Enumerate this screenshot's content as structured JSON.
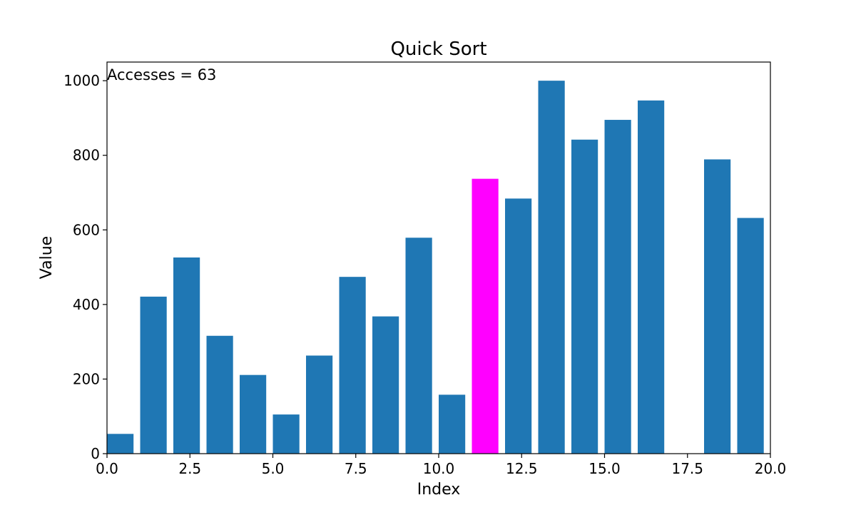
{
  "chart_data": {
    "type": "bar",
    "title": "Quick Sort",
    "xlabel": "Index",
    "ylabel": "Value",
    "annotation": "Accesses = 63",
    "xlim": [
      0,
      20
    ],
    "ylim": [
      0,
      1050
    ],
    "xticks": [
      0,
      2.5,
      5,
      7.5,
      10,
      12.5,
      15,
      17.5,
      20
    ],
    "xtick_labels": [
      "0.0",
      "2.5",
      "5.0",
      "7.5",
      "10.0",
      "12.5",
      "15.0",
      "17.5",
      "20.0"
    ],
    "yticks": [
      0,
      200,
      400,
      600,
      800,
      1000
    ],
    "ytick_labels": [
      "0",
      "200",
      "400",
      "600",
      "800",
      "1000"
    ],
    "bar_width": 0.8,
    "x": [
      0,
      1,
      2,
      3,
      4,
      5,
      6,
      7,
      8,
      9,
      10,
      11,
      12,
      13,
      14,
      15,
      16,
      17,
      18,
      19
    ],
    "values": [
      53,
      421,
      526,
      316,
      211,
      105,
      263,
      474,
      368,
      579,
      158,
      737,
      684,
      1000,
      842,
      895,
      947,
      0,
      789,
      632
    ],
    "highlight_index": 11,
    "colors": {
      "bar": "#1f77b4",
      "highlight": "#ff00ff"
    },
    "grid": false,
    "legend": "none"
  }
}
